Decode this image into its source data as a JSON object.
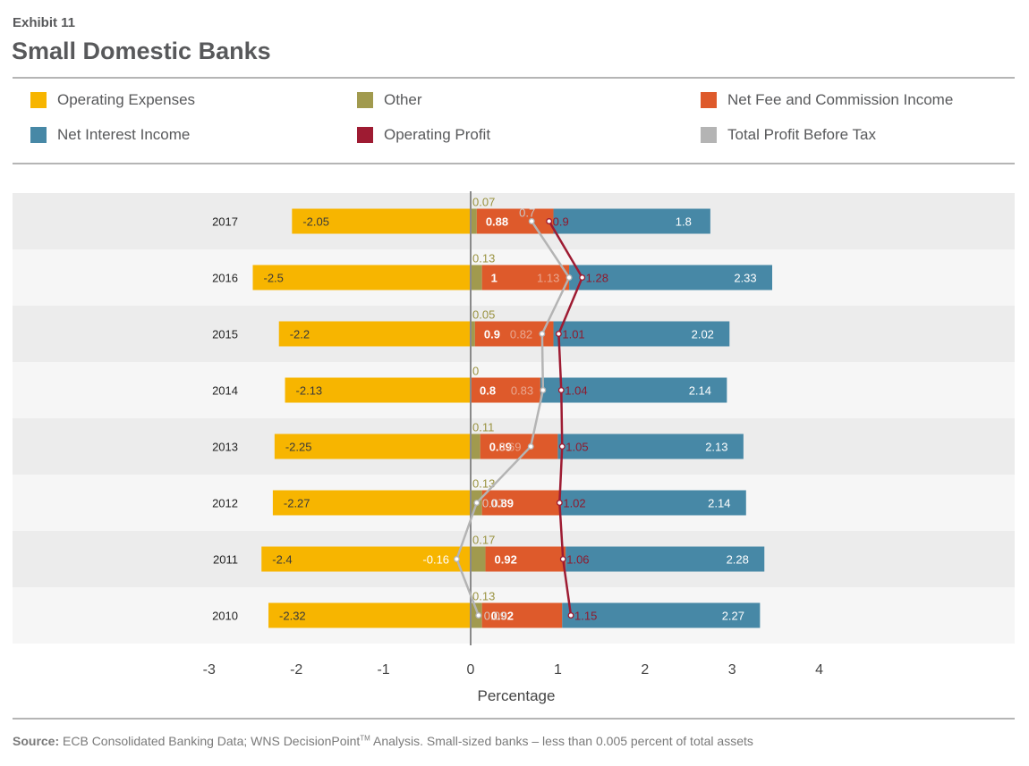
{
  "header": {
    "exhibit": "Exhibit 11",
    "title": "Small Domestic Banks"
  },
  "legend": [
    {
      "label": "Operating Expenses",
      "color": "#f7b500"
    },
    {
      "label": "Other",
      "color": "#a19a4e"
    },
    {
      "label": "Net Fee and Commission Income",
      "color": "#de5a2b"
    },
    {
      "label": "Net Interest Income",
      "color": "#4788a6"
    },
    {
      "label": "Operating Profit",
      "color": "#9e1b32"
    },
    {
      "label": "Total Profit Before Tax",
      "color": "#b4b4b4"
    }
  ],
  "chart_data": {
    "type": "bar",
    "orientation": "horizontal",
    "stacked": true,
    "title": "",
    "xlabel": "Percentage",
    "ylabel": "",
    "xlim": [
      -3,
      4
    ],
    "xticks": [
      "-3",
      "-2",
      "-1",
      "0",
      "1",
      "2",
      "3",
      "4"
    ],
    "categories": [
      "2017",
      "2016",
      "2015",
      "2014",
      "2013",
      "2012",
      "2011",
      "2010"
    ],
    "series": [
      {
        "name": "Operating Expenses",
        "color": "#f7b500",
        "values": [
          -2.05,
          -2.5,
          -2.2,
          -2.13,
          -2.25,
          -2.27,
          -2.4,
          -2.32
        ],
        "labels": [
          "-2.05",
          "-2.5",
          "-2.2",
          "-2.13",
          "-2.25",
          "-2.27",
          "-2.4",
          "-2.32"
        ]
      },
      {
        "name": "Other",
        "color": "#a19a4e",
        "values": [
          0.07,
          0.13,
          0.05,
          0,
          0.11,
          0.13,
          0.17,
          0.13
        ],
        "labels": [
          "0.07",
          "0.13",
          "0.05",
          "0",
          "0.11",
          "0.13",
          "0.17",
          "0.13"
        ]
      },
      {
        "name": "Net Fee and Commission Income",
        "color": "#de5a2b",
        "values": [
          0.88,
          1,
          0.9,
          0.8,
          0.89,
          0.89,
          0.92,
          0.92
        ],
        "labels": [
          "0.88",
          "1",
          "0.9",
          "0.8",
          "0.89",
          "0.89",
          "0.92",
          "0.92"
        ]
      },
      {
        "name": "Net Interest Income",
        "color": "#4788a6",
        "values": [
          1.8,
          2.33,
          2.02,
          2.14,
          2.13,
          2.14,
          2.28,
          2.27
        ],
        "labels": [
          "1.8",
          "2.33",
          "2.02",
          "2.14",
          "2.13",
          "2.14",
          "2.28",
          "2.27"
        ]
      },
      {
        "name": "Operating Profit",
        "type": "line",
        "color": "#9e1b32",
        "values": [
          0.9,
          1.28,
          1.01,
          1.04,
          1.05,
          1.02,
          1.06,
          1.15
        ],
        "labels": [
          "0.9",
          "1.28",
          "1.01",
          "1.04",
          "1.05",
          "1.02",
          "1.06",
          "1.15"
        ]
      },
      {
        "name": "Total Profit Before Tax",
        "type": "line",
        "color": "#b4b4b4",
        "values": [
          0.7,
          1.13,
          0.82,
          0.83,
          0.69,
          0.07,
          -0.16,
          0.09
        ],
        "labels": [
          "0.7",
          "1.13",
          "0.82",
          "0.83",
          "0.69",
          "0.07",
          "-0.16",
          "0.09"
        ]
      }
    ]
  },
  "footer": {
    "source_label": "Source:",
    "source_text": "ECB Consolidated Banking Data; WNS DecisionPoint",
    "trademark": "TM",
    "source_text_2": " Analysis. Small-sized banks – less than 0.005 percent of total assets"
  }
}
